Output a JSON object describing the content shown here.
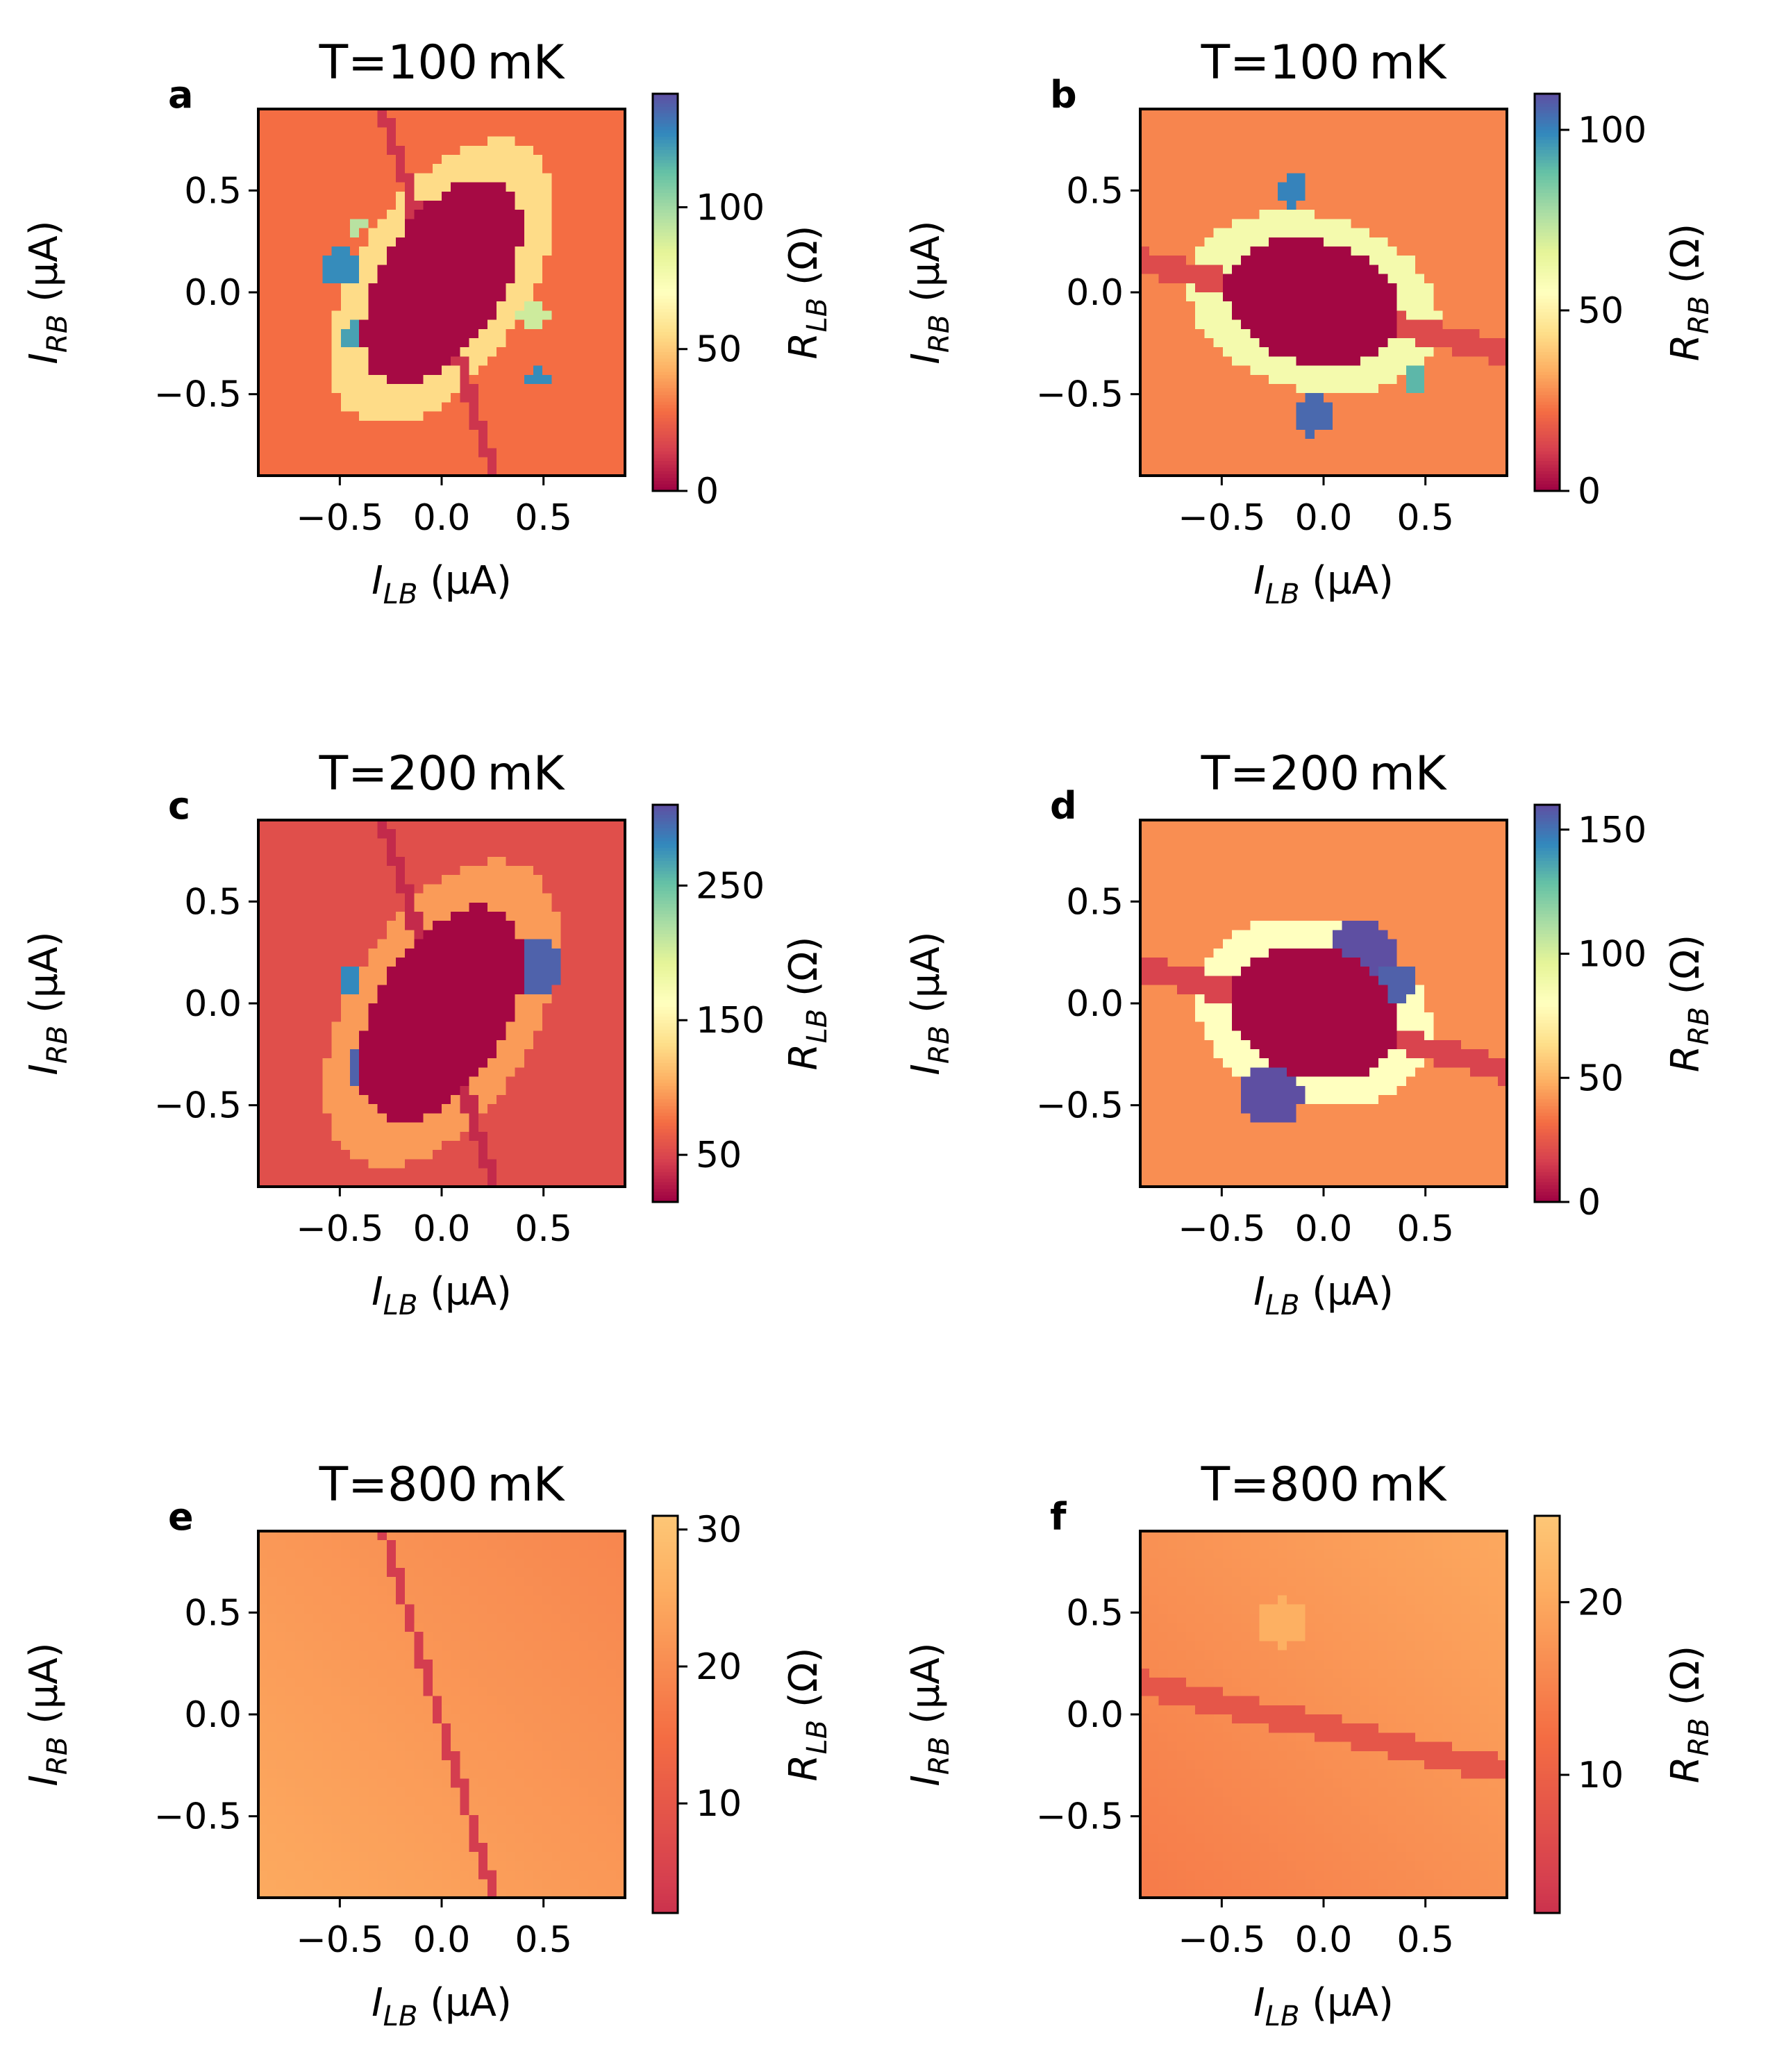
{
  "chart_data": [
    {
      "panel": "a",
      "type": "heatmap",
      "title": "T=100 mK",
      "xlabel": {
        "var": "I",
        "sub": "LB",
        "unit": " (µA)"
      },
      "ylabel": {
        "var": "I",
        "sub": "RB",
        "unit": " (µA)"
      },
      "cbar_label": {
        "var": "R",
        "sub": "LB",
        "unit": " (Ω)"
      },
      "xlim": [
        -0.9,
        0.9
      ],
      "ylim": [
        -0.9,
        0.9
      ],
      "xticks": [
        {
          "v": -0.5,
          "t": "−0.5"
        },
        {
          "v": 0.0,
          "t": "0.0"
        },
        {
          "v": 0.5,
          "t": "0.5"
        }
      ],
      "yticks": [
        {
          "v": 0.5,
          "t": "0.5"
        },
        {
          "v": 0.0,
          "t": "0.0"
        },
        {
          "v": -0.5,
          "t": "−0.5"
        }
      ],
      "vrange": [
        0,
        140
      ],
      "cticks": [
        {
          "v": 0,
          "t": "0"
        },
        {
          "v": 50,
          "t": "50"
        },
        {
          "v": 100,
          "t": "100"
        }
      ],
      "colormap": "Spectral",
      "model": {
        "bg": 28,
        "tilt": 0,
        "ellipse": {
          "cx": 0.0,
          "cy": 0.05,
          "rx": 0.3,
          "ry": 0.56,
          "rot": -32,
          "val": 2
        },
        "ring": {
          "w": 0.14,
          "val": 55
        },
        "line": {
          "x0": -0.28,
          "y0": 0.88,
          "x1": 0.25,
          "y1": -0.88,
          "val": 12,
          "w": 0.03
        },
        "blobs": [
          {
            "x": -0.5,
            "y": 0.12,
            "r": 0.09,
            "val": 125
          },
          {
            "x": -0.44,
            "y": -0.22,
            "r": 0.07,
            "val": 120
          },
          {
            "x": -0.42,
            "y": 0.33,
            "r": 0.05,
            "val": 95
          },
          {
            "x": 0.45,
            "y": -0.13,
            "r": 0.07,
            "val": 90
          },
          {
            "x": 0.47,
            "y": -0.42,
            "r": 0.05,
            "val": 125
          }
        ]
      }
    },
    {
      "panel": "b",
      "type": "heatmap",
      "title": "T=100 mK",
      "xlabel": {
        "var": "I",
        "sub": "LB",
        "unit": " (µA)"
      },
      "ylabel": {
        "var": "I",
        "sub": "RB",
        "unit": " (µA)"
      },
      "cbar_label": {
        "var": "R",
        "sub": "RB",
        "unit": " (Ω)"
      },
      "xlim": [
        -0.9,
        0.9
      ],
      "ylim": [
        -0.9,
        0.9
      ],
      "xticks": [
        {
          "v": -0.5,
          "t": "−0.5"
        },
        {
          "v": 0.0,
          "t": "0.0"
        },
        {
          "v": 0.5,
          "t": "0.5"
        }
      ],
      "yticks": [
        {
          "v": 0.5,
          "t": "0.5"
        },
        {
          "v": 0.0,
          "t": "0.0"
        },
        {
          "v": -0.5,
          "t": "−0.5"
        }
      ],
      "vrange": [
        0,
        110
      ],
      "cticks": [
        {
          "v": 0,
          "t": "0"
        },
        {
          "v": 50,
          "t": "50"
        },
        {
          "v": 100,
          "t": "100"
        }
      ],
      "colormap": "Spectral",
      "model": {
        "bg": 26,
        "tilt": 0,
        "ellipse": {
          "cx": -0.05,
          "cy": -0.05,
          "rx": 0.44,
          "ry": 0.3,
          "rot": -15,
          "val": 1
        },
        "ring": {
          "w": 0.15,
          "val": 60
        },
        "line": {
          "x0": -0.9,
          "y0": 0.15,
          "x1": 0.9,
          "y1": -0.3,
          "val": 14,
          "w": 0.06
        },
        "blobs": [
          {
            "x": -0.15,
            "y": 0.5,
            "r": 0.08,
            "val": 100
          },
          {
            "x": -0.05,
            "y": -0.6,
            "r": 0.1,
            "val": 105
          },
          {
            "x": 0.45,
            "y": -0.42,
            "r": 0.06,
            "val": 90
          }
        ]
      }
    },
    {
      "panel": "c",
      "type": "heatmap",
      "title": "T=200 mK",
      "xlabel": {
        "var": "I",
        "sub": "LB",
        "unit": " (µA)"
      },
      "ylabel": {
        "var": "I",
        "sub": "RB",
        "unit": " (µA)"
      },
      "cbar_label": {
        "var": "R",
        "sub": "LB",
        "unit": " (Ω)"
      },
      "xlim": [
        -0.9,
        0.9
      ],
      "ylim": [
        -0.9,
        0.9
      ],
      "xticks": [
        {
          "v": -0.5,
          "t": "−0.5"
        },
        {
          "v": 0.0,
          "t": "0.0"
        },
        {
          "v": 0.5,
          "t": "0.5"
        }
      ],
      "yticks": [
        {
          "v": 0.5,
          "t": "0.5"
        },
        {
          "v": 0.0,
          "t": "0.0"
        },
        {
          "v": -0.5,
          "t": "−0.5"
        }
      ],
      "vrange": [
        15,
        310
      ],
      "cticks": [
        {
          "v": 50,
          "t": "50"
        },
        {
          "v": 150,
          "t": "150"
        },
        {
          "v": 250,
          "t": "250"
        }
      ],
      "colormap": "Spectral",
      "model": {
        "bg": 55,
        "tilt": 0,
        "ellipse": {
          "cx": 0.0,
          "cy": -0.05,
          "rx": 0.32,
          "ry": 0.58,
          "rot": -30,
          "val": 18
        },
        "ring": {
          "w": 0.15,
          "val": 95
        },
        "line": {
          "x0": -0.28,
          "y0": 0.88,
          "x1": 0.25,
          "y1": -0.88,
          "val": 35,
          "w": 0.03
        },
        "blobs": [
          {
            "x": 0.45,
            "y": 0.17,
            "r": 0.14,
            "val": 300
          },
          {
            "x": -0.35,
            "y": -0.33,
            "r": 0.12,
            "val": 300
          },
          {
            "x": -0.45,
            "y": 0.12,
            "r": 0.06,
            "val": 280
          },
          {
            "x": 0.22,
            "y": 0.35,
            "r": 0.05,
            "val": 250
          }
        ]
      }
    },
    {
      "panel": "d",
      "type": "heatmap",
      "title": "T=200 mK",
      "xlabel": {
        "var": "I",
        "sub": "LB",
        "unit": " (µA)"
      },
      "ylabel": {
        "var": "I",
        "sub": "RB",
        "unit": " (µA)"
      },
      "cbar_label": {
        "var": "R",
        "sub": "RB",
        "unit": " (Ω)"
      },
      "xlim": [
        -0.9,
        0.9
      ],
      "ylim": [
        -0.9,
        0.9
      ],
      "xticks": [
        {
          "v": -0.5,
          "t": "−0.5"
        },
        {
          "v": 0.0,
          "t": "0.0"
        },
        {
          "v": 0.5,
          "t": "0.5"
        }
      ],
      "yticks": [
        {
          "v": 0.5,
          "t": "0.5"
        },
        {
          "v": 0.0,
          "t": "0.0"
        },
        {
          "v": -0.5,
          "t": "−0.5"
        }
      ],
      "vrange": [
        0,
        160
      ],
      "cticks": [
        {
          "v": 0,
          "t": "0"
        },
        {
          "v": 50,
          "t": "50"
        },
        {
          "v": 100,
          "t": "100"
        },
        {
          "v": 150,
          "t": "150"
        }
      ],
      "colormap": "Spectral",
      "model": {
        "bg": 40,
        "tilt": 0,
        "ellipse": {
          "cx": -0.05,
          "cy": -0.05,
          "rx": 0.42,
          "ry": 0.32,
          "rot": -18,
          "val": 2
        },
        "ring": {
          "w": 0.14,
          "val": 80
        },
        "line": {
          "x0": -0.9,
          "y0": 0.18,
          "x1": 0.9,
          "y1": -0.33,
          "val": 18,
          "w": 0.06
        },
        "blobs": [
          {
            "x": 0.2,
            "y": 0.25,
            "r": 0.16,
            "val": 160
          },
          {
            "x": -0.25,
            "y": -0.45,
            "r": 0.15,
            "val": 160
          },
          {
            "x": 0.35,
            "y": 0.1,
            "r": 0.1,
            "val": 155
          }
        ]
      }
    },
    {
      "panel": "e",
      "type": "heatmap",
      "title": "T=800 mK",
      "xlabel": {
        "var": "I",
        "sub": "LB",
        "unit": " (µA)"
      },
      "ylabel": {
        "var": "I",
        "sub": "RB",
        "unit": " (µA)"
      },
      "cbar_label": {
        "var": "R",
        "sub": "LB",
        "unit": " (Ω)"
      },
      "xlim": [
        -0.9,
        0.9
      ],
      "ylim": [
        -0.9,
        0.9
      ],
      "xticks": [
        {
          "v": -0.5,
          "t": "−0.5"
        },
        {
          "v": 0.0,
          "t": "0.0"
        },
        {
          "v": 0.5,
          "t": "0.5"
        }
      ],
      "yticks": [
        {
          "v": 0.5,
          "t": "0.5"
        },
        {
          "v": 0.0,
          "t": "0.0"
        },
        {
          "v": -0.5,
          "t": "−0.5"
        }
      ],
      "vrange": [
        2,
        31
      ],
      "cticks": [
        {
          "v": 10,
          "t": "10"
        },
        {
          "v": 20,
          "t": "20"
        },
        {
          "v": 30,
          "t": "30"
        }
      ],
      "colormap": "Spectral-lower",
      "model": {
        "bg": 22,
        "tilt": -3,
        "ellipse": null,
        "ring": null,
        "line": {
          "x0": -0.28,
          "y0": 0.88,
          "x1": 0.25,
          "y1": -0.88,
          "val": 4,
          "w": 0.025
        },
        "blobs": []
      }
    },
    {
      "panel": "f",
      "type": "heatmap",
      "title": "T=800 mK",
      "xlabel": {
        "var": "I",
        "sub": "LB",
        "unit": " (µA)"
      },
      "ylabel": {
        "var": "I",
        "sub": "RB",
        "unit": " (µA)"
      },
      "cbar_label": {
        "var": "R",
        "sub": "RB",
        "unit": " (Ω)"
      },
      "xlim": [
        -0.9,
        0.9
      ],
      "ylim": [
        -0.9,
        0.9
      ],
      "xticks": [
        {
          "v": -0.5,
          "t": "−0.5"
        },
        {
          "v": 0.0,
          "t": "0.0"
        },
        {
          "v": 0.5,
          "t": "0.5"
        }
      ],
      "yticks": [
        {
          "v": 0.5,
          "t": "0.5"
        },
        {
          "v": 0.0,
          "t": "0.0"
        },
        {
          "v": -0.5,
          "t": "−0.5"
        }
      ],
      "vrange": [
        2,
        25
      ],
      "cticks": [
        {
          "v": 10,
          "t": "10"
        },
        {
          "v": 20,
          "t": "20"
        }
      ],
      "colormap": "Spectral-lower",
      "model": {
        "bg": 17,
        "tilt": 3,
        "ellipse": null,
        "ring": null,
        "line": {
          "x0": -0.9,
          "y0": 0.15,
          "x1": 0.9,
          "y1": -0.28,
          "val": 8,
          "w": 0.06
        },
        "blobs": [
          {
            "x": -0.2,
            "y": 0.45,
            "r": 0.12,
            "val": 21
          }
        ]
      }
    }
  ]
}
